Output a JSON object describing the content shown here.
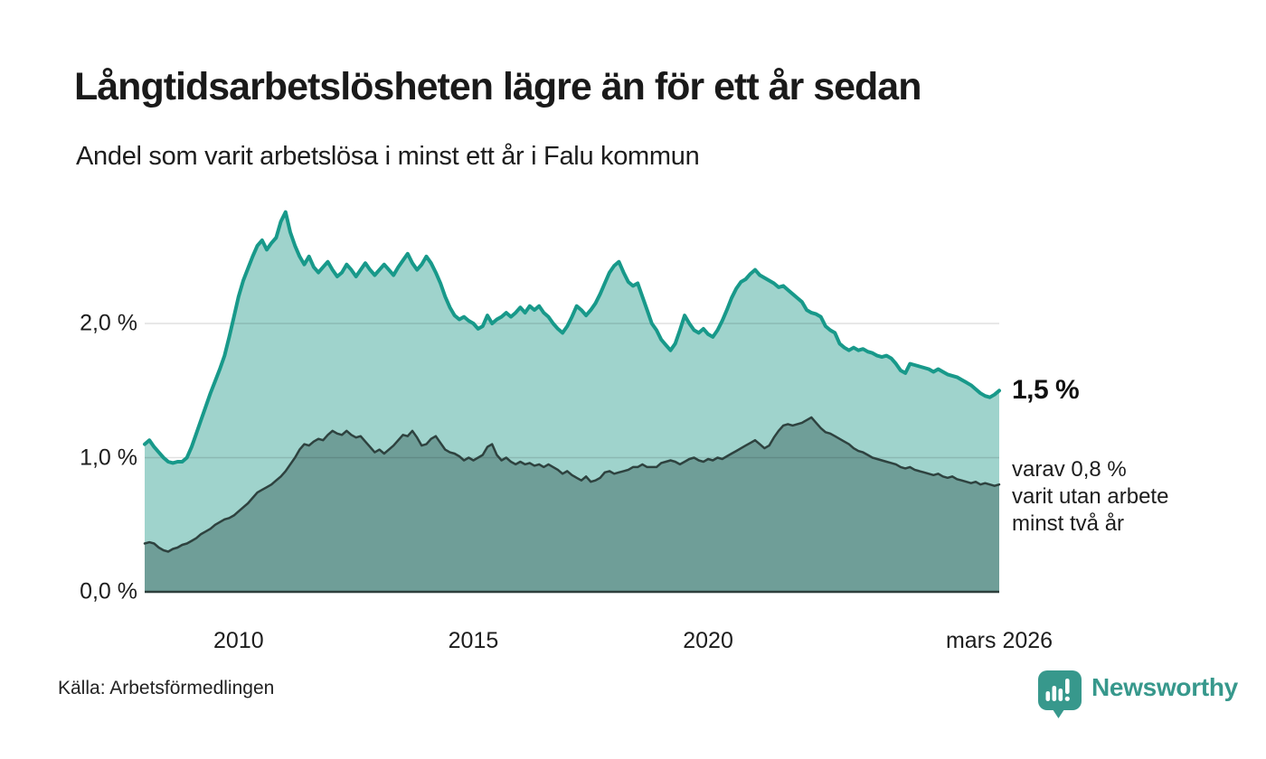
{
  "header": {
    "title": "Långtidsarbetslösheten lägre än för ett år sedan",
    "subtitle": "Andel som varit arbetslösa i minst ett år i Falu kommun"
  },
  "footer": {
    "source": "Källa: Arbetsförmedlingen",
    "brand": "Newsworthy"
  },
  "colors": {
    "accent_teal": "#18998a",
    "light_fill": "#9fd3cc",
    "dark_fill": "#6f9e98",
    "dark_line": "#2e423f",
    "grid": "rgba(0,0,0,0.12)",
    "baseline": "#2e3f3c",
    "brand_teal": "#37988c",
    "text": "#1a1a1a"
  },
  "chart_data": {
    "type": "area",
    "title": "Långtidsarbetslösheten lägre än för ett år sedan",
    "subtitle": "Andel som varit arbetslösa i minst ett år i Falu kommun",
    "y_unit": "%",
    "ylim": [
      0,
      2.9
    ],
    "x_range": [
      2008.0,
      2026.2
    ],
    "step": 0.1,
    "grid_values": [
      1.0,
      2.0
    ],
    "y_axis": {
      "ticks": [
        {
          "value": 0,
          "label": "0,0 %"
        },
        {
          "value": 1,
          "label": "1,0 %"
        },
        {
          "value": 2,
          "label": "2,0 %"
        }
      ]
    },
    "x_axis": {
      "ticks": [
        {
          "value": 2010,
          "label": "2010"
        },
        {
          "value": 2015,
          "label": "2015"
        },
        {
          "value": 2020,
          "label": "2020"
        },
        {
          "value": 2026.2,
          "label": "mars 2026"
        }
      ]
    },
    "series": [
      {
        "name": "Arbetslösa minst ett år",
        "color": "#18998a",
        "fill": "#9fd3cc",
        "stroke_width": 4,
        "latest_value": 1.5,
        "values": [
          1.1,
          1.13,
          1.08,
          1.04,
          1.0,
          0.97,
          0.96,
          0.97,
          0.97,
          1.0,
          1.08,
          1.18,
          1.28,
          1.38,
          1.48,
          1.57,
          1.66,
          1.76,
          1.9,
          2.05,
          2.2,
          2.32,
          2.41,
          2.5,
          2.58,
          2.62,
          2.55,
          2.6,
          2.64,
          2.76,
          2.83,
          2.68,
          2.58,
          2.5,
          2.44,
          2.5,
          2.42,
          2.38,
          2.42,
          2.46,
          2.4,
          2.35,
          2.38,
          2.44,
          2.4,
          2.35,
          2.4,
          2.45,
          2.4,
          2.36,
          2.4,
          2.44,
          2.4,
          2.36,
          2.42,
          2.47,
          2.52,
          2.45,
          2.4,
          2.44,
          2.5,
          2.45,
          2.38,
          2.3,
          2.2,
          2.12,
          2.06,
          2.03,
          2.05,
          2.02,
          2.0,
          1.96,
          1.98,
          2.06,
          2.0,
          2.03,
          2.05,
          2.08,
          2.05,
          2.08,
          2.12,
          2.08,
          2.13,
          2.1,
          2.13,
          2.08,
          2.05,
          2.0,
          1.96,
          1.93,
          1.98,
          2.05,
          2.13,
          2.1,
          2.06,
          2.1,
          2.15,
          2.22,
          2.3,
          2.38,
          2.43,
          2.46,
          2.38,
          2.31,
          2.28,
          2.3,
          2.2,
          2.1,
          2.0,
          1.95,
          1.88,
          1.84,
          1.8,
          1.85,
          1.95,
          2.06,
          2.0,
          1.95,
          1.93,
          1.96,
          1.92,
          1.9,
          1.95,
          2.02,
          2.1,
          2.19,
          2.26,
          2.31,
          2.33,
          2.37,
          2.4,
          2.36,
          2.34,
          2.32,
          2.3,
          2.27,
          2.28,
          2.25,
          2.22,
          2.19,
          2.16,
          2.1,
          2.08,
          2.07,
          2.05,
          1.98,
          1.95,
          1.93,
          1.85,
          1.82,
          1.8,
          1.82,
          1.8,
          1.81,
          1.79,
          1.78,
          1.76,
          1.75,
          1.76,
          1.74,
          1.7,
          1.65,
          1.63,
          1.7,
          1.69,
          1.68,
          1.67,
          1.66,
          1.64,
          1.66,
          1.64,
          1.62,
          1.61,
          1.6,
          1.58,
          1.56,
          1.54,
          1.51,
          1.48,
          1.46,
          1.45,
          1.47,
          1.5
        ]
      },
      {
        "name": "Arbetslösa minst två år",
        "color": "#2e423f",
        "fill": "#6f9e98",
        "stroke_width": 2.5,
        "latest_value": 0.8,
        "values": [
          0.36,
          0.37,
          0.36,
          0.33,
          0.31,
          0.3,
          0.32,
          0.33,
          0.35,
          0.36,
          0.38,
          0.4,
          0.43,
          0.45,
          0.47,
          0.5,
          0.52,
          0.54,
          0.55,
          0.57,
          0.6,
          0.63,
          0.66,
          0.7,
          0.74,
          0.76,
          0.78,
          0.8,
          0.83,
          0.86,
          0.9,
          0.95,
          1.0,
          1.06,
          1.1,
          1.09,
          1.12,
          1.14,
          1.13,
          1.17,
          1.2,
          1.18,
          1.17,
          1.2,
          1.17,
          1.15,
          1.16,
          1.12,
          1.08,
          1.04,
          1.06,
          1.03,
          1.06,
          1.09,
          1.13,
          1.17,
          1.16,
          1.2,
          1.15,
          1.09,
          1.1,
          1.14,
          1.16,
          1.11,
          1.06,
          1.04,
          1.03,
          1.01,
          0.98,
          1.0,
          0.98,
          1.0,
          1.02,
          1.08,
          1.1,
          1.02,
          0.98,
          1.0,
          0.97,
          0.95,
          0.97,
          0.95,
          0.96,
          0.94,
          0.95,
          0.93,
          0.95,
          0.93,
          0.91,
          0.88,
          0.9,
          0.87,
          0.85,
          0.83,
          0.86,
          0.82,
          0.83,
          0.85,
          0.89,
          0.9,
          0.88,
          0.89,
          0.9,
          0.91,
          0.93,
          0.93,
          0.95,
          0.93,
          0.93,
          0.93,
          0.96,
          0.97,
          0.98,
          0.97,
          0.95,
          0.97,
          0.99,
          1.0,
          0.98,
          0.97,
          0.99,
          0.98,
          1.0,
          0.99,
          1.01,
          1.03,
          1.05,
          1.07,
          1.09,
          1.11,
          1.13,
          1.1,
          1.07,
          1.09,
          1.15,
          1.2,
          1.24,
          1.25,
          1.24,
          1.25,
          1.26,
          1.28,
          1.3,
          1.26,
          1.22,
          1.19,
          1.18,
          1.16,
          1.14,
          1.12,
          1.1,
          1.07,
          1.05,
          1.04,
          1.02,
          1.0,
          0.99,
          0.98,
          0.97,
          0.96,
          0.95,
          0.93,
          0.92,
          0.93,
          0.91,
          0.9,
          0.89,
          0.88,
          0.87,
          0.88,
          0.86,
          0.85,
          0.86,
          0.84,
          0.83,
          0.82,
          0.81,
          0.82,
          0.8,
          0.81,
          0.8,
          0.79,
          0.8
        ]
      }
    ],
    "annotations": [
      {
        "text": "1,5 %",
        "value": 1.5
      },
      {
        "lines": [
          "varav 0,8 %",
          "varit utan arbete",
          "minst två år"
        ],
        "value": 0.8
      }
    ]
  }
}
